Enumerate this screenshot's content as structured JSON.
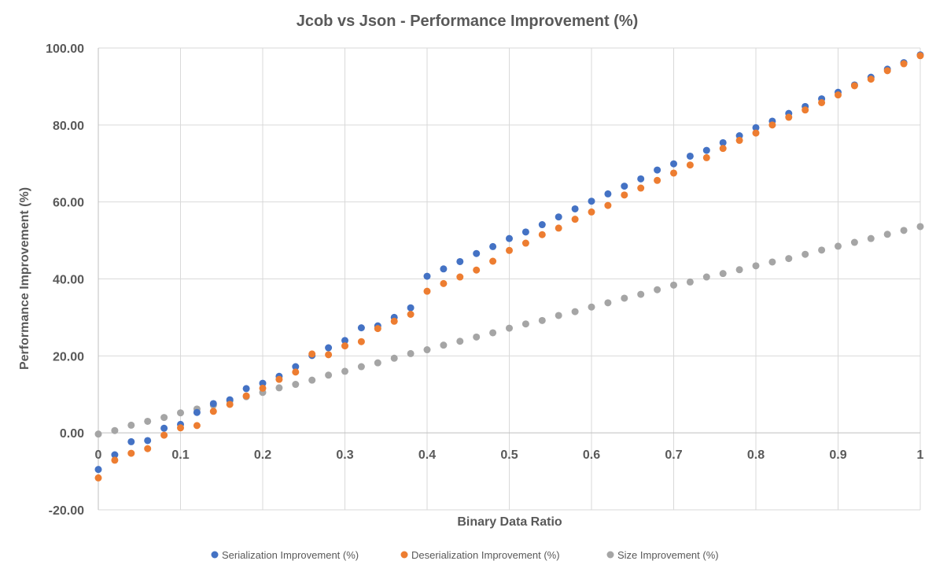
{
  "chart_data": {
    "type": "scatter",
    "title": "Jcob vs Json - Performance Improvement (%)",
    "xlabel": "Binary Data Ratio",
    "ylabel": "Performance Improvement (%)",
    "xlim": [
      0,
      1
    ],
    "ylim": [
      -20,
      100
    ],
    "x_ticks": [
      "0",
      "0.1",
      "0.2",
      "0.3",
      "0.4",
      "0.5",
      "0.6",
      "0.7",
      "0.8",
      "0.9",
      "1"
    ],
    "y_ticks": [
      "-20.00",
      "0.00",
      "20.00",
      "40.00",
      "60.00",
      "80.00",
      "100.00"
    ],
    "grid": true,
    "legend_position": "bottom",
    "x": [
      0,
      0.02,
      0.04,
      0.06,
      0.08,
      0.1,
      0.12,
      0.14,
      0.16,
      0.18,
      0.2,
      0.22,
      0.24,
      0.26,
      0.28,
      0.3,
      0.32,
      0.34,
      0.36,
      0.38,
      0.4,
      0.42,
      0.44,
      0.46,
      0.48,
      0.5,
      0.52,
      0.54,
      0.56,
      0.58,
      0.6,
      0.62,
      0.64,
      0.66,
      0.68,
      0.7,
      0.72,
      0.74,
      0.76,
      0.78,
      0.8,
      0.82,
      0.84,
      0.86,
      0.88,
      0.9,
      0.92,
      0.94,
      0.96,
      0.98,
      1
    ],
    "series": [
      {
        "name": "Serialization Improvement (%)",
        "color": "#4472c4",
        "values": [
          -9.5,
          -5.7,
          -2.3,
          -2.0,
          1.2,
          2.2,
          5.3,
          7.6,
          8.6,
          11.5,
          12.9,
          14.7,
          17.2,
          20.1,
          22.1,
          24.0,
          27.3,
          27.8,
          30.0,
          32.5,
          40.7,
          42.6,
          44.5,
          46.6,
          48.4,
          50.5,
          52.2,
          54.1,
          56.1,
          58.2,
          60.2,
          62.1,
          64.1,
          66.0,
          68.3,
          69.9,
          71.9,
          73.4,
          75.4,
          77.2,
          79.3,
          81.0,
          83.0,
          84.8,
          86.8,
          88.5,
          90.4,
          92.4,
          94.5,
          96.2,
          98.2
        ]
      },
      {
        "name": "Deserialization Improvement (%)",
        "color": "#ed7d31",
        "values": [
          -11.7,
          -7.1,
          -5.3,
          -4.1,
          -0.6,
          1.3,
          1.9,
          5.6,
          7.4,
          9.6,
          11.6,
          13.9,
          15.8,
          20.5,
          20.3,
          22.6,
          23.7,
          27.1,
          29.0,
          30.8,
          36.8,
          38.8,
          40.5,
          42.3,
          44.6,
          47.4,
          49.3,
          51.5,
          53.2,
          55.5,
          57.4,
          59.1,
          61.8,
          63.6,
          65.6,
          67.5,
          69.6,
          71.5,
          73.9,
          76.0,
          77.9,
          80.0,
          82.0,
          83.9,
          85.8,
          87.8,
          90.2,
          91.9,
          94.1,
          95.9,
          98.0
        ]
      },
      {
        "name": "Size Improvement (%)",
        "color": "#a5a5a5",
        "values": [
          -0.3,
          0.6,
          2.0,
          3.0,
          4.0,
          5.2,
          6.2,
          7.2,
          8.3,
          9.4,
          10.5,
          11.7,
          12.6,
          13.7,
          15.0,
          16.0,
          17.2,
          18.2,
          19.4,
          20.6,
          21.6,
          22.8,
          23.8,
          24.9,
          26.0,
          27.2,
          28.3,
          29.2,
          30.5,
          31.5,
          32.7,
          33.8,
          35.0,
          36.0,
          37.2,
          38.4,
          39.2,
          40.5,
          41.4,
          42.4,
          43.4,
          44.4,
          45.3,
          46.4,
          47.5,
          48.5,
          49.5,
          50.5,
          51.6,
          52.6,
          53.6
        ]
      }
    ]
  }
}
